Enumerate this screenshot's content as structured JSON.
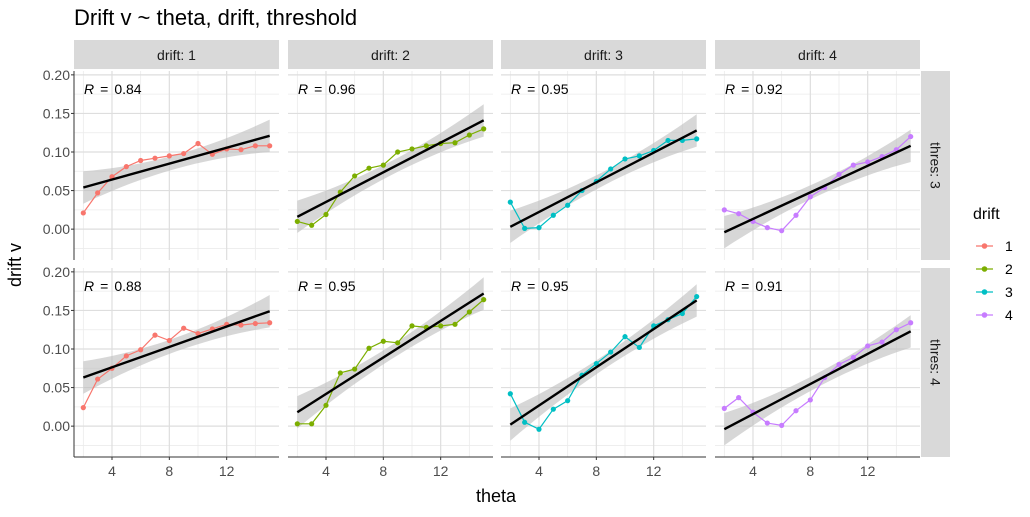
{
  "chart_data": {
    "type": "line",
    "title": "Drift v ~ theta, drift, threshold",
    "xlabel": "theta",
    "ylabel": "drift v",
    "xlim": [
      1.35,
      15.65
    ],
    "ylim": [
      -0.04,
      0.205
    ],
    "x_ticks": [
      4,
      8,
      12
    ],
    "x_tick_labels": [
      "4",
      "8",
      "12"
    ],
    "y_ticks": [
      0,
      0.05,
      0.1,
      0.15,
      0.2
    ],
    "y_tick_labels": [
      "0.00",
      "0.05",
      "0.10",
      "0.15",
      "0.20"
    ],
    "x": [
      2,
      3,
      4,
      5,
      6,
      7,
      8,
      9,
      10,
      11,
      12,
      13,
      14,
      15
    ],
    "col_strip_labels": [
      "drift: 1",
      "drift: 2",
      "drift: 3",
      "drift: 4"
    ],
    "row_strip_labels": [
      "thres: 3",
      "thres: 4"
    ],
    "grid": true,
    "legend": {
      "title": "drift",
      "position": "right",
      "labels": [
        "1",
        "2",
        "3",
        "4"
      ],
      "colors": [
        "#F8766D",
        "#7CAE00",
        "#00BFC4",
        "#C77CFF"
      ]
    },
    "r_prefix": "R",
    "r_equals": "=",
    "fit_line_color": "#000000",
    "ci_band_color": "#bdbdbd",
    "panels": [
      {
        "row": 0,
        "col": 0,
        "series": "1",
        "r": "0.84",
        "values": [
          0.021,
          0.047,
          0.068,
          0.081,
          0.089,
          0.092,
          0.095,
          0.098,
          0.111,
          0.097,
          0.104,
          0.103,
          0.108,
          0.108
        ],
        "fit": [
          0.054,
          0.121
        ]
      },
      {
        "row": 0,
        "col": 1,
        "series": "2",
        "r": "0.96",
        "values": [
          0.01,
          0.005,
          0.019,
          0.048,
          0.069,
          0.079,
          0.083,
          0.1,
          0.104,
          0.108,
          0.111,
          0.112,
          0.122,
          0.13
        ],
        "fit": [
          0.016,
          0.141
        ]
      },
      {
        "row": 0,
        "col": 2,
        "series": "3",
        "r": "0.95",
        "values": [
          0.035,
          0.001,
          0.002,
          0.018,
          0.031,
          0.05,
          0.062,
          0.078,
          0.091,
          0.095,
          0.102,
          0.115,
          0.115,
          0.117
        ],
        "fit": [
          0.003,
          0.128
        ]
      },
      {
        "row": 0,
        "col": 3,
        "series": "4",
        "r": "0.92",
        "values": [
          0.025,
          0.02,
          0.01,
          0.002,
          -0.002,
          0.018,
          0.042,
          0.054,
          0.071,
          0.083,
          0.087,
          0.094,
          0.103,
          0.12
        ],
        "fit": [
          -0.004,
          0.108
        ]
      },
      {
        "row": 1,
        "col": 0,
        "series": "1",
        "r": "0.88",
        "values": [
          0.024,
          0.061,
          0.075,
          0.091,
          0.099,
          0.118,
          0.111,
          0.127,
          0.12,
          0.126,
          0.132,
          0.131,
          0.133,
          0.134
        ],
        "fit": [
          0.063,
          0.149
        ]
      },
      {
        "row": 1,
        "col": 1,
        "series": "2",
        "r": "0.95",
        "values": [
          0.003,
          0.003,
          0.027,
          0.069,
          0.074,
          0.101,
          0.11,
          0.108,
          0.13,
          0.128,
          0.13,
          0.132,
          0.148,
          0.164
        ],
        "fit": [
          0.018,
          0.172
        ]
      },
      {
        "row": 1,
        "col": 2,
        "series": "3",
        "r": "0.95",
        "values": [
          0.042,
          0.005,
          -0.004,
          0.022,
          0.033,
          0.066,
          0.081,
          0.096,
          0.116,
          0.102,
          0.13,
          0.138,
          0.146,
          0.168
        ],
        "fit": [
          0.002,
          0.163
        ]
      },
      {
        "row": 1,
        "col": 3,
        "series": "4",
        "r": "0.91",
        "values": [
          0.023,
          0.037,
          0.018,
          0.004,
          0.001,
          0.02,
          0.034,
          0.063,
          0.08,
          0.089,
          0.104,
          0.109,
          0.125,
          0.134
        ],
        "fit": [
          -0.004,
          0.123
        ]
      }
    ]
  }
}
